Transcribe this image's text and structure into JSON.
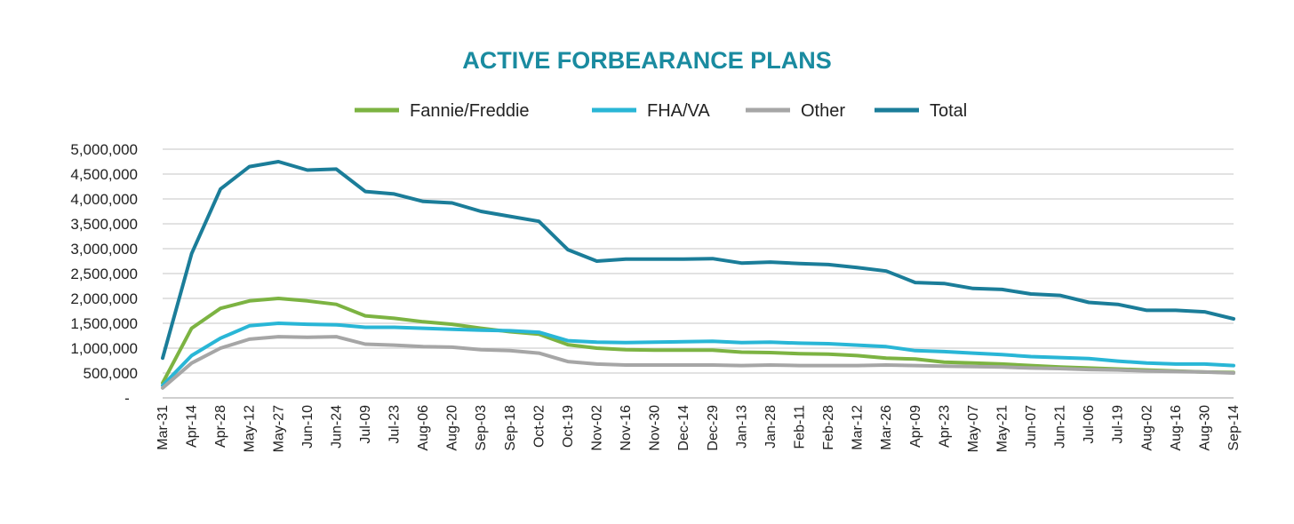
{
  "chart_data": {
    "type": "line",
    "title": "ACTIVE FORBEARANCE PLANS",
    "xlabel": "",
    "ylabel": "",
    "ylim": [
      0,
      5000000
    ],
    "y_ticks": [
      0,
      500000,
      1000000,
      1500000,
      2000000,
      2500000,
      3000000,
      3500000,
      4000000,
      4500000,
      5000000
    ],
    "y_tick_labels": [
      "-",
      "500,000",
      "1,000,000",
      "1,500,000",
      "2,000,000",
      "2,500,000",
      "3,000,000",
      "3,500,000",
      "4,000,000",
      "4,500,000",
      "5,000,000"
    ],
    "legend_position": "top-center",
    "grid": true,
    "categories": [
      "Mar-31",
      "Apr-14",
      "Apr-28",
      "May-12",
      "May-27",
      "Jun-10",
      "Jun-24",
      "Jul-09",
      "Jul-23",
      "Aug-06",
      "Aug-20",
      "Sep-03",
      "Sep-18",
      "Oct-02",
      "Oct-19",
      "Nov-02",
      "Nov-16",
      "Nov-30",
      "Dec-14",
      "Dec-29",
      "Jan-13",
      "Jan-28",
      "Feb-11",
      "Feb-28",
      "Mar-12",
      "Mar-26",
      "Apr-09",
      "Apr-23",
      "May-07",
      "May-21",
      "Jun-07",
      "Jun-21",
      "Jul-06",
      "Jul-19",
      "Aug-02",
      "Aug-16",
      "Aug-30",
      "Sep-14"
    ],
    "series": [
      {
        "name": "Fannie/Freddie",
        "color": "#7cb342",
        "values": [
          300000,
          1400000,
          1800000,
          1950000,
          2000000,
          1950000,
          1880000,
          1650000,
          1600000,
          1530000,
          1480000,
          1400000,
          1330000,
          1280000,
          1070000,
          1000000,
          970000,
          960000,
          960000,
          960000,
          920000,
          910000,
          890000,
          880000,
          850000,
          800000,
          780000,
          720000,
          700000,
          680000,
          650000,
          620000,
          600000,
          580000,
          560000,
          540000,
          520000,
          510000
        ]
      },
      {
        "name": "FHA/VA",
        "color": "#29b6d6",
        "values": [
          250000,
          850000,
          1200000,
          1450000,
          1500000,
          1480000,
          1470000,
          1420000,
          1420000,
          1400000,
          1380000,
          1360000,
          1350000,
          1320000,
          1150000,
          1120000,
          1110000,
          1120000,
          1130000,
          1140000,
          1110000,
          1120000,
          1100000,
          1090000,
          1060000,
          1030000,
          950000,
          930000,
          900000,
          870000,
          830000,
          810000,
          790000,
          740000,
          700000,
          680000,
          680000,
          650000
        ]
      },
      {
        "name": "Other",
        "color": "#a6a6a6",
        "values": [
          200000,
          700000,
          1000000,
          1180000,
          1230000,
          1220000,
          1230000,
          1080000,
          1060000,
          1030000,
          1020000,
          970000,
          950000,
          900000,
          730000,
          680000,
          660000,
          660000,
          660000,
          660000,
          650000,
          660000,
          650000,
          650000,
          650000,
          660000,
          650000,
          640000,
          630000,
          620000,
          600000,
          590000,
          570000,
          560000,
          540000,
          530000,
          520000,
          500000
        ]
      },
      {
        "name": "Total",
        "color": "#1b7d99",
        "values": [
          800000,
          2900000,
          4200000,
          4650000,
          4750000,
          4580000,
          4600000,
          4150000,
          4100000,
          3950000,
          3920000,
          3750000,
          3650000,
          3550000,
          2980000,
          2750000,
          2790000,
          2790000,
          2790000,
          2800000,
          2710000,
          2730000,
          2700000,
          2680000,
          2620000,
          2550000,
          2320000,
          2300000,
          2200000,
          2180000,
          2090000,
          2060000,
          1920000,
          1880000,
          1760000,
          1760000,
          1730000,
          1590000
        ]
      }
    ]
  },
  "style": {
    "title_color": "#1a8ba0",
    "grid_color": "#d9d9d9",
    "axis_color": "#bfbfbf"
  }
}
